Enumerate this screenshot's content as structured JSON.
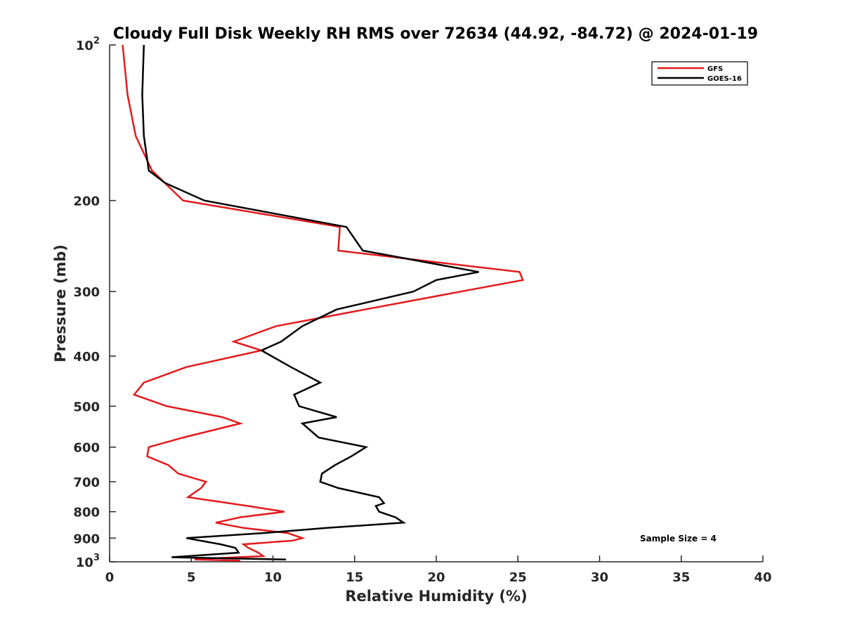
{
  "chart_data": {
    "type": "line",
    "title": "Cloudy Full Disk Weekly RH RMS over 72634 (44.92, -84.72) @ 2024-01-19",
    "xlabel": "Relative Humidity (%)",
    "ylabel": "Pressure (mb)",
    "xlim": [
      0,
      40
    ],
    "ylim": [
      100,
      1000
    ],
    "yscale": "log",
    "y_reversed": true,
    "grid": false,
    "legend_position": "top-right",
    "x_ticks": [
      "0",
      "5",
      "10",
      "15",
      "20",
      "25",
      "30",
      "35",
      "40"
    ],
    "x_tick_values": [
      0,
      5,
      10,
      15,
      20,
      25,
      30,
      35,
      40
    ],
    "y_ticks": [
      {
        "value": 100,
        "base": "10",
        "exp": "2"
      },
      {
        "value": 200,
        "label": "200"
      },
      {
        "value": 300,
        "label": "300"
      },
      {
        "value": 400,
        "label": "400"
      },
      {
        "value": 500,
        "label": "500"
      },
      {
        "value": 600,
        "label": "600"
      },
      {
        "value": 700,
        "label": "700"
      },
      {
        "value": 800,
        "label": "800"
      },
      {
        "value": 900,
        "label": "900"
      },
      {
        "value": 1000,
        "base": "10",
        "exp": "3"
      }
    ],
    "annotation": "Sample Size = 4",
    "series": [
      {
        "name": "GFS",
        "color": "#e41a1c",
        "points": [
          [
            0.8,
            100
          ],
          [
            1.1,
            125
          ],
          [
            1.6,
            150
          ],
          [
            2.6,
            175
          ],
          [
            4.5,
            200
          ],
          [
            14.1,
            225
          ],
          [
            14.0,
            250
          ],
          [
            25.1,
            275
          ],
          [
            25.3,
            285
          ],
          [
            21.5,
            300
          ],
          [
            10.2,
            350
          ],
          [
            7.6,
            375
          ],
          [
            9.3,
            390
          ],
          [
            4.7,
            420
          ],
          [
            2.1,
            450
          ],
          [
            1.5,
            475
          ],
          [
            3.5,
            500
          ],
          [
            6.9,
            525
          ],
          [
            8.0,
            540
          ],
          [
            4.5,
            575
          ],
          [
            2.4,
            600
          ],
          [
            2.3,
            625
          ],
          [
            3.6,
            650
          ],
          [
            4.2,
            675
          ],
          [
            5.9,
            700
          ],
          [
            5.6,
            720
          ],
          [
            4.8,
            750
          ],
          [
            8.5,
            780
          ],
          [
            10.7,
            800
          ],
          [
            8.0,
            820
          ],
          [
            6.5,
            840
          ],
          [
            8.2,
            860
          ],
          [
            10.9,
            880
          ],
          [
            11.8,
            900
          ],
          [
            11.2,
            910
          ],
          [
            8.2,
            925
          ],
          [
            8.5,
            940
          ],
          [
            9.1,
            960
          ],
          [
            9.4,
            975
          ],
          [
            6.2,
            985
          ],
          [
            5.2,
            990
          ],
          [
            8.0,
            995
          ]
        ]
      },
      {
        "name": "GOES-16",
        "color": "#000000",
        "points": [
          [
            2.1,
            100
          ],
          [
            2.0,
            125
          ],
          [
            2.1,
            150
          ],
          [
            2.4,
            175
          ],
          [
            3.4,
            185
          ],
          [
            5.8,
            200
          ],
          [
            14.5,
            225
          ],
          [
            15.5,
            250
          ],
          [
            22.6,
            275
          ],
          [
            20.0,
            285
          ],
          [
            18.6,
            300
          ],
          [
            13.9,
            325
          ],
          [
            11.8,
            350
          ],
          [
            10.5,
            375
          ],
          [
            9.3,
            390
          ],
          [
            11.1,
            420
          ],
          [
            12.9,
            450
          ],
          [
            11.3,
            475
          ],
          [
            11.6,
            500
          ],
          [
            13.9,
            525
          ],
          [
            11.8,
            540
          ],
          [
            12.8,
            575
          ],
          [
            15.7,
            600
          ],
          [
            14.8,
            625
          ],
          [
            13.8,
            650
          ],
          [
            13.0,
            675
          ],
          [
            12.9,
            700
          ],
          [
            14.0,
            720
          ],
          [
            16.5,
            750
          ],
          [
            16.8,
            770
          ],
          [
            16.3,
            780
          ],
          [
            16.5,
            800
          ],
          [
            17.5,
            820
          ],
          [
            18.0,
            840
          ],
          [
            13.3,
            860
          ],
          [
            9.4,
            880
          ],
          [
            4.7,
            900
          ],
          [
            6.8,
            925
          ],
          [
            7.7,
            940
          ],
          [
            7.9,
            960
          ],
          [
            3.8,
            980
          ],
          [
            10.8,
            990
          ]
        ]
      }
    ]
  }
}
